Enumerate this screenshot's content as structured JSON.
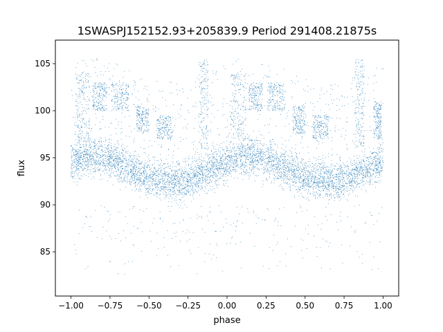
{
  "chart_data": {
    "type": "scatter",
    "title": "1SWASPJ152152.93+205839.9 Period 291408.21875s",
    "xlabel": "phase",
    "ylabel": "flux",
    "xlim": [
      -1.1,
      1.1
    ],
    "ylim": [
      80.3,
      107.5
    ],
    "xticks": [
      -1.0,
      -0.75,
      -0.5,
      -0.25,
      0.0,
      0.25,
      0.5,
      0.75,
      1.0
    ],
    "xtick_labels": [
      "−1.00",
      "−0.75",
      "−0.50",
      "−0.25",
      "0.00",
      "0.25",
      "0.50",
      "0.75",
      "1.00"
    ],
    "yticks": [
      85,
      90,
      95,
      100,
      105
    ],
    "ytick_labels": [
      "85",
      "90",
      "95",
      "100",
      "105"
    ],
    "grid": false,
    "legend": "none",
    "marker_color": "#1f77b4",
    "series": [
      {
        "baseline_trend": {
          "x": [
            -1.0,
            -0.9,
            -0.8,
            -0.7,
            -0.6,
            -0.5,
            -0.4,
            -0.3,
            -0.2,
            -0.1,
            0.0,
            0.1,
            0.2,
            0.3,
            0.4,
            0.5,
            0.6,
            0.7,
            0.8,
            0.9,
            1.0
          ],
          "y": [
            94.5,
            95.2,
            95.1,
            94.5,
            93.6,
            92.9,
            92.6,
            92.4,
            93.0,
            93.8,
            94.5,
            95.2,
            95.1,
            94.5,
            93.6,
            92.9,
            92.6,
            92.4,
            93.0,
            93.8,
            94.5
          ],
          "scatter_width": 1.8
        },
        "upper_branch_clusters": [
          {
            "x_range": [
              -0.97,
              -0.88
            ],
            "y_range": [
              97.0,
              104.0
            ]
          },
          {
            "x_range": [
              -0.86,
              -0.77
            ],
            "y_range": [
              100.0,
              103.0
            ]
          },
          {
            "x_range": [
              -0.74,
              -0.63
            ],
            "y_range": [
              100.0,
              103.0
            ]
          },
          {
            "x_range": [
              -0.58,
              -0.5
            ],
            "y_range": [
              97.5,
              100.5
            ]
          },
          {
            "x_range": [
              -0.45,
              -0.35
            ],
            "y_range": [
              97.0,
              99.5
            ]
          },
          {
            "x_range": [
              -0.18,
              -0.12
            ],
            "y_range": [
              96.0,
              105.5
            ]
          },
          {
            "x_range": [
              0.02,
              0.12
            ],
            "y_range": [
              97.0,
              104.0
            ]
          },
          {
            "x_range": [
              0.14,
              0.23
            ],
            "y_range": [
              100.0,
              103.0
            ]
          },
          {
            "x_range": [
              0.26,
              0.37
            ],
            "y_range": [
              100.0,
              103.0
            ]
          },
          {
            "x_range": [
              0.42,
              0.5
            ],
            "y_range": [
              97.5,
              100.5
            ]
          },
          {
            "x_range": [
              0.55,
              0.65
            ],
            "y_range": [
              97.0,
              99.5
            ]
          },
          {
            "x_range": [
              0.82,
              0.88
            ],
            "y_range": [
              96.0,
              105.5
            ]
          },
          {
            "x_range": [
              0.94,
              0.99
            ],
            "y_range": [
              97.0,
              101.0
            ]
          }
        ],
        "lower_outlier_range": [
          81.5,
          90.0
        ]
      }
    ]
  }
}
